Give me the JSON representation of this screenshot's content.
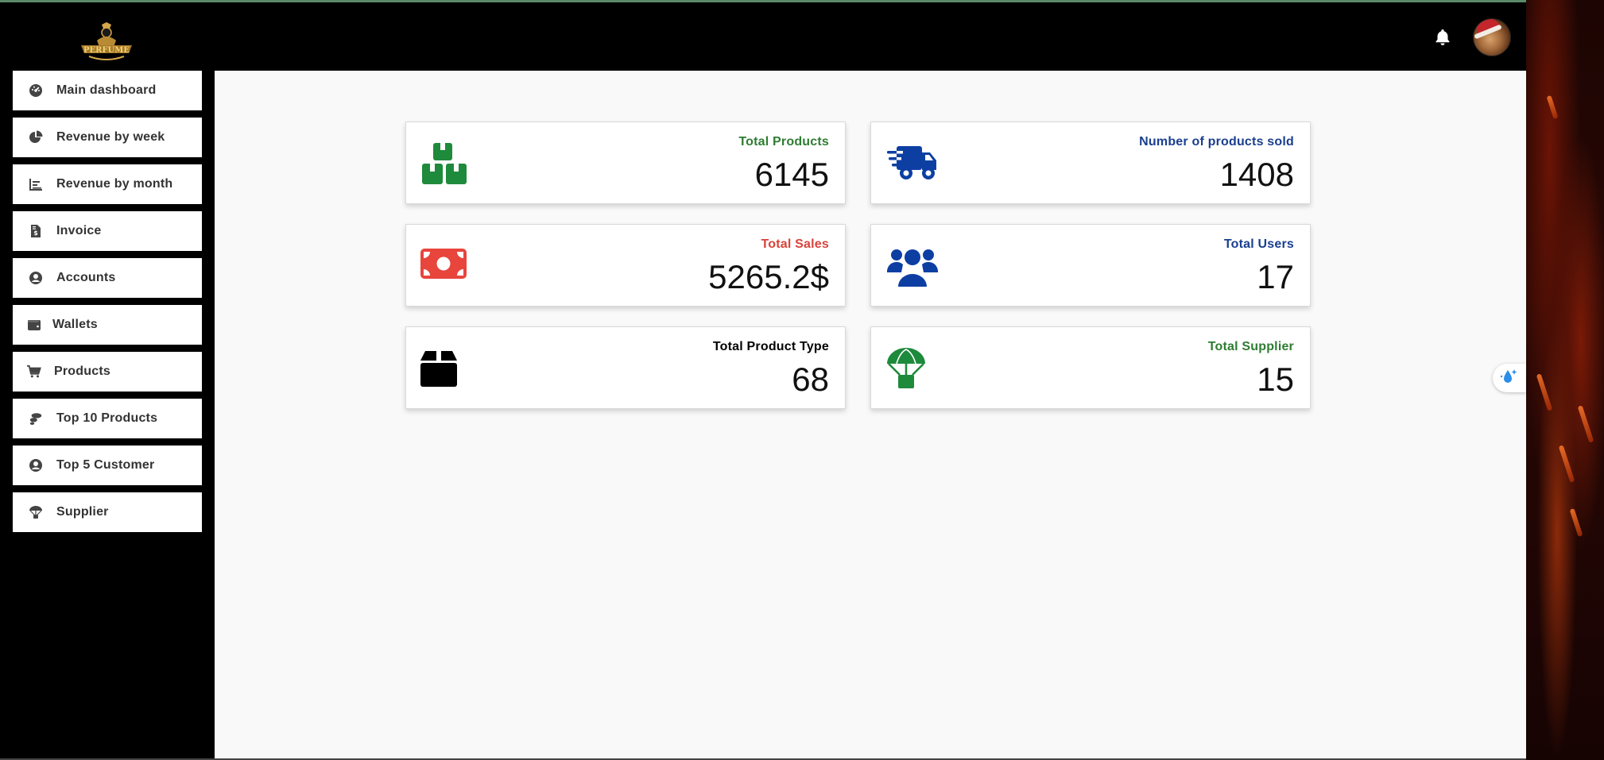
{
  "sidebar": {
    "items": [
      {
        "label": "Main dashboard",
        "icon": "gauge-icon"
      },
      {
        "label": "Revenue by week",
        "icon": "pie-chart-icon"
      },
      {
        "label": "Revenue by month",
        "icon": "bar-chart-icon"
      },
      {
        "label": "Invoice",
        "icon": "invoice-dollar-icon"
      },
      {
        "label": "Accounts",
        "icon": "user-circle-icon"
      },
      {
        "label": "Wallets",
        "icon": "wallet-icon"
      },
      {
        "label": "Products",
        "icon": "cart-icon"
      },
      {
        "label": "Top 10 Products",
        "icon": "stones-icon"
      },
      {
        "label": "Top 5 Customer",
        "icon": "user-circle-icon"
      },
      {
        "label": "Supplier",
        "icon": "parachute-icon"
      }
    ]
  },
  "cards": [
    {
      "title": "Total Products",
      "value": "6145",
      "color": "#2e7d32",
      "icon": "boxes-stacked-icon"
    },
    {
      "title": "Number of products sold",
      "value": "1408",
      "color": "#1a3f8f",
      "icon": "truck-fast-icon"
    },
    {
      "title": "Total Sales",
      "value": "5265.2$",
      "color": "#d9433b",
      "icon": "money-bill-icon"
    },
    {
      "title": "Total Users",
      "value": "17",
      "color": "#1a3f8f",
      "icon": "users-icon"
    },
    {
      "title": "Total Product Type",
      "value": "68",
      "color": "#000000",
      "icon": "box-icon"
    },
    {
      "title": "Total Supplier",
      "value": "15",
      "color": "#2e7d32",
      "icon": "parachute-box-icon"
    }
  ],
  "colors": {
    "header_bg": "#000000",
    "main_bg": "#f9f9f9",
    "green": "#1e8a3c",
    "blue": "#0d3fa3",
    "red": "#e8453c"
  }
}
